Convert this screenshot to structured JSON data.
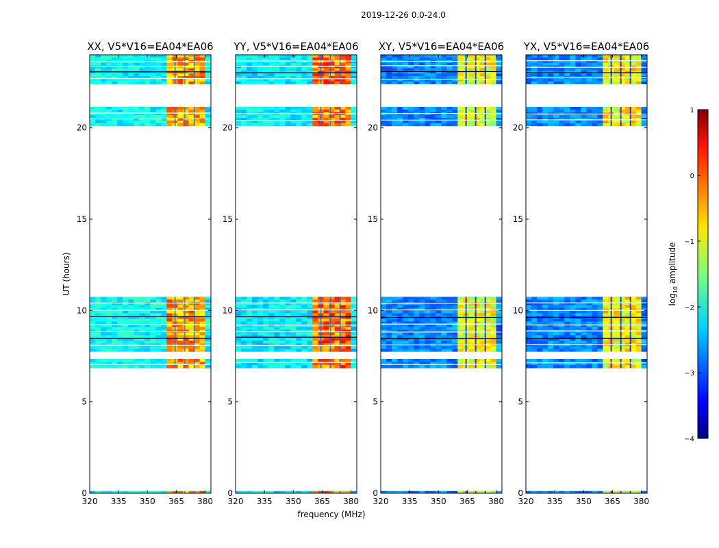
{
  "chart_data": {
    "type": "heatmap",
    "suptitle": "2019-12-26 0.0-24.0",
    "xlabel": "frequency (MHz)",
    "ylabel": "UT (hours)",
    "xlim": [
      320,
      383
    ],
    "ylim": [
      0,
      24
    ],
    "xticks": [
      320,
      335,
      350,
      365,
      380
    ],
    "yticks": [
      0,
      5,
      10,
      15,
      20
    ],
    "colorbar": {
      "label": "log10 amplitude",
      "label_base": "log",
      "label_sub": "10",
      "label_rest": " amplitude",
      "range": [
        -4,
        1
      ],
      "ticks": [
        -4,
        -3,
        -2,
        -1,
        0,
        1
      ],
      "colormap": "jet"
    },
    "time_blocks": [
      {
        "t0": 0.0,
        "t1": 0.12
      },
      {
        "t0": 6.85,
        "t1": 7.35
      },
      {
        "t0": 7.75,
        "t1": 10.75
      },
      {
        "t0": 20.1,
        "t1": 21.15
      },
      {
        "t0": 22.4,
        "t1": 24.0
      }
    ],
    "bright_band_mhz": [
      360,
      380
    ],
    "panels": [
      {
        "title": "XX, V5*V16=EA04*EA06",
        "background_level": -2.1,
        "band_level": -0.4
      },
      {
        "title": "YY, V5*V16=EA04*EA06",
        "background_level": -2.2,
        "band_level": -0.2
      },
      {
        "title": "XY, V5*V16=EA04*EA06",
        "background_level": -2.7,
        "band_level": -1.0
      },
      {
        "title": "YX, V5*V16=EA04*EA06",
        "background_level": -2.7,
        "band_level": -0.9
      }
    ]
  }
}
